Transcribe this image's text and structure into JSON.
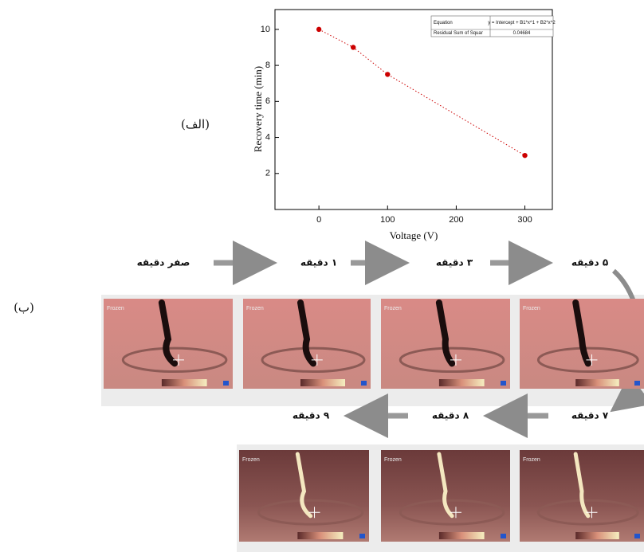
{
  "chart_data": {
    "type": "scatter",
    "x": [
      0,
      50,
      100,
      300
    ],
    "values": [
      10,
      9,
      7.5,
      3
    ],
    "color": "#cc0000",
    "xlabel": "Voltage (V)",
    "ylabel": "Recovery time (min)",
    "xlim": [
      -64,
      340
    ],
    "ylim": [
      0,
      11.1
    ],
    "xticks": [
      0,
      100,
      200,
      300
    ],
    "yticks": [
      2,
      4,
      6,
      8,
      10
    ],
    "fit_table": [
      [
        "Equation",
        "y = Intercept + B1*x^1 + B2*x^2"
      ],
      [
        "Residual Sum of Squar",
        "0.04684"
      ]
    ]
  },
  "labels": {
    "a": "(الف)",
    "b": "(ب)"
  },
  "steps": {
    "row1": [
      "صفر دقیقه",
      "۱ دقیقه",
      "۳ دقیقه",
      "۵ دقیقه"
    ],
    "row2": [
      "۷ دقیقه",
      "۸ دقیقه",
      "۹ دقیقه"
    ]
  },
  "panel_label": "Frozen"
}
